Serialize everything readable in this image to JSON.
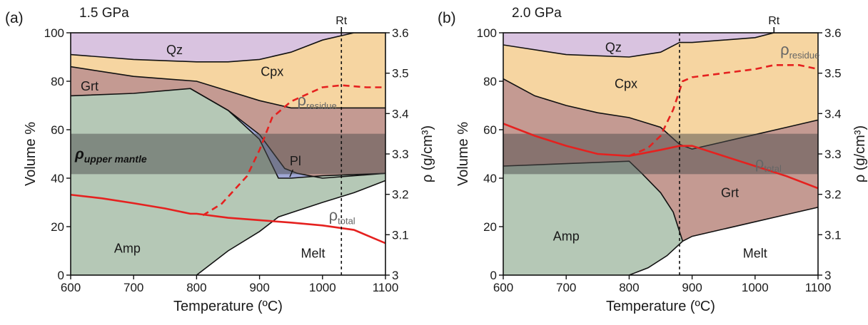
{
  "colors": {
    "Qz": "#d9c3e0",
    "Cpx": "#f6d5a1",
    "Grt": "#c49a92",
    "Amp": "#b5c8b6",
    "Pl": "#9fa7d4",
    "Melt": "#ffffff",
    "density": "#e5211f",
    "mantle_band": "#4b4b4b"
  },
  "chart_data": [
    {
      "panel": "(a)",
      "pressure": "1.5 GPa",
      "type": "area",
      "xlabel": "Temperature (ºC)",
      "ylabel": "Volume %",
      "y2label": "ρ (g/cm³)",
      "xlim": [
        600,
        1100
      ],
      "ylim": [
        0,
        100
      ],
      "y2lim": [
        3.0,
        3.6
      ],
      "xticks": [
        "600",
        "700",
        "800",
        "900",
        "1000",
        "1100"
      ],
      "yticks": [
        "0",
        "20",
        "40",
        "60",
        "80",
        "100"
      ],
      "y2ticks": [
        "3",
        "3.1",
        "3.2",
        "3.3",
        "3.4",
        "3.5",
        "3.6"
      ],
      "grid": false,
      "boundaries": {
        "melt": [
          [
            800,
            0
          ],
          [
            850,
            10
          ],
          [
            900,
            18
          ],
          [
            930,
            24
          ],
          [
            1000,
            30
          ],
          [
            1050,
            34
          ],
          [
            1100,
            39
          ]
        ],
        "amp_top": [
          [
            600,
            74
          ],
          [
            700,
            75
          ],
          [
            790,
            77
          ],
          [
            850,
            68
          ],
          [
            900,
            56
          ],
          [
            930,
            40
          ],
          [
            950,
            40
          ],
          [
            1000,
            41
          ],
          [
            1100,
            42
          ]
        ],
        "pl_top": [
          [
            790,
            77
          ],
          [
            850,
            68
          ],
          [
            900,
            58
          ],
          [
            940,
            44
          ],
          [
            960,
            42
          ],
          [
            1000,
            40
          ],
          [
            1100,
            42
          ]
        ],
        "grt_top": [
          [
            600,
            86
          ],
          [
            700,
            82
          ],
          [
            800,
            80
          ],
          [
            900,
            72
          ],
          [
            950,
            69
          ],
          [
            1000,
            69
          ],
          [
            1100,
            69
          ]
        ],
        "cpx_top": [
          [
            600,
            91
          ],
          [
            700,
            89
          ],
          [
            800,
            88
          ],
          [
            850,
            88
          ],
          [
            900,
            89
          ],
          [
            950,
            92
          ],
          [
            1000,
            97
          ],
          [
            1050,
            100
          ],
          [
            1100,
            100
          ]
        ]
      },
      "region_labels": [
        {
          "name": "Qz",
          "x": 765,
          "y": 93
        },
        {
          "name": "Cpx",
          "x": 920,
          "y": 84
        },
        {
          "name": "Grt",
          "x": 630,
          "y": 78
        },
        {
          "name": "Pl",
          "x": 957,
          "y": 47
        },
        {
          "name": "Amp",
          "x": 690,
          "y": 11
        },
        {
          "name": "Melt",
          "x": 985,
          "y": 9
        }
      ],
      "series": [
        {
          "name": "ρtotal",
          "style": "solid",
          "x": [
            600,
            650,
            700,
            750,
            790,
            800,
            850,
            900,
            950,
            1000,
            1050,
            1100
          ],
          "y": [
            3.199,
            3.19,
            3.178,
            3.165,
            3.152,
            3.152,
            3.142,
            3.136,
            3.13,
            3.123,
            3.112,
            3.079
          ]
        },
        {
          "name": "ρresidue",
          "style": "dashed",
          "x": [
            810,
            840,
            880,
            900,
            920,
            950,
            1000,
            1030,
            1070,
            1100
          ],
          "y": [
            3.148,
            3.177,
            3.245,
            3.31,
            3.39,
            3.43,
            3.465,
            3.47,
            3.465,
            3.465
          ]
        }
      ],
      "series_labels": [
        {
          "name": "ρ",
          "sub": "residue",
          "x": 960,
          "y": 3.42
        },
        {
          "name": "ρ",
          "sub": "total",
          "x": 1010,
          "y": 3.135
        }
      ],
      "upper_mantle_band": {
        "label": "ρ",
        "sub": "upper mantle",
        "y2": [
          3.25,
          3.35
        ]
      },
      "solidus_line": {
        "x": 1030
      },
      "rutile_marker": {
        "label": "Rt",
        "x": 1030
      }
    },
    {
      "panel": "(b)",
      "pressure": "2.0 GPa",
      "type": "area",
      "xlabel": "Temperature (ºC)",
      "ylabel": "Volume %",
      "y2label": "ρ (g/cm³)",
      "xlim": [
        600,
        1100
      ],
      "ylim": [
        0,
        100
      ],
      "y2lim": [
        3.0,
        3.6
      ],
      "xticks": [
        "600",
        "700",
        "800",
        "900",
        "1000",
        "1100"
      ],
      "yticks": [
        "0",
        "20",
        "40",
        "60",
        "80",
        "100"
      ],
      "y2ticks": [
        "3",
        "3.1",
        "3.2",
        "3.3",
        "3.4",
        "3.5",
        "3.6"
      ],
      "grid": false,
      "boundaries": {
        "melt": [
          [
            800,
            0
          ],
          [
            830,
            3
          ],
          [
            860,
            8
          ],
          [
            885,
            14
          ],
          [
            900,
            16
          ],
          [
            950,
            19
          ],
          [
            1000,
            22
          ],
          [
            1050,
            25
          ],
          [
            1100,
            28
          ]
        ],
        "amp_top": [
          [
            600,
            45
          ],
          [
            700,
            46
          ],
          [
            800,
            47
          ],
          [
            820,
            42
          ],
          [
            850,
            34
          ],
          [
            870,
            26
          ],
          [
            885,
            14
          ]
        ],
        "grt_top": [
          [
            600,
            81
          ],
          [
            650,
            74
          ],
          [
            700,
            70
          ],
          [
            750,
            67
          ],
          [
            800,
            65
          ],
          [
            850,
            61
          ],
          [
            880,
            54
          ],
          [
            900,
            52
          ],
          [
            950,
            55
          ],
          [
            1000,
            58
          ],
          [
            1050,
            61
          ],
          [
            1100,
            64
          ]
        ],
        "cpx_top": [
          [
            600,
            95
          ],
          [
            700,
            91
          ],
          [
            800,
            90
          ],
          [
            850,
            92
          ],
          [
            880,
            96
          ],
          [
            900,
            96
          ],
          [
            1000,
            98
          ],
          [
            1030,
            100
          ],
          [
            1100,
            100
          ]
        ]
      },
      "region_labels": [
        {
          "name": "Qz",
          "x": 775,
          "y": 94
        },
        {
          "name": "Cpx",
          "x": 795,
          "y": 79
        },
        {
          "name": "Grt",
          "x": 960,
          "y": 34
        },
        {
          "name": "Amp",
          "x": 700,
          "y": 16
        },
        {
          "name": "Melt",
          "x": 1000,
          "y": 9
        }
      ],
      "series": [
        {
          "name": "ρtotal",
          "style": "solid",
          "x": [
            600,
            650,
            700,
            750,
            800,
            850,
            880,
            900,
            950,
            1000,
            1050,
            1100
          ],
          "y": [
            3.375,
            3.345,
            3.32,
            3.3,
            3.295,
            3.31,
            3.32,
            3.32,
            3.295,
            3.27,
            3.245,
            3.215
          ]
        },
        {
          "name": "ρresidue",
          "style": "dashed",
          "x": [
            800,
            830,
            850,
            870,
            885,
            900,
            950,
            1000,
            1030,
            1070,
            1100
          ],
          "y": [
            3.295,
            3.315,
            3.345,
            3.41,
            3.48,
            3.49,
            3.5,
            3.51,
            3.52,
            3.52,
            3.51
          ]
        }
      ],
      "series_labels": [
        {
          "name": "ρ",
          "sub": "residue",
          "x": 1040,
          "y": 3.545
        },
        {
          "name": "ρ",
          "sub": "total",
          "x": 1000,
          "y": 3.265
        }
      ],
      "upper_mantle_band": {
        "y2": [
          3.25,
          3.35
        ]
      },
      "solidus_line": {
        "x": 880
      },
      "rutile_marker": {
        "label": "Rt",
        "x": 1030
      }
    }
  ]
}
